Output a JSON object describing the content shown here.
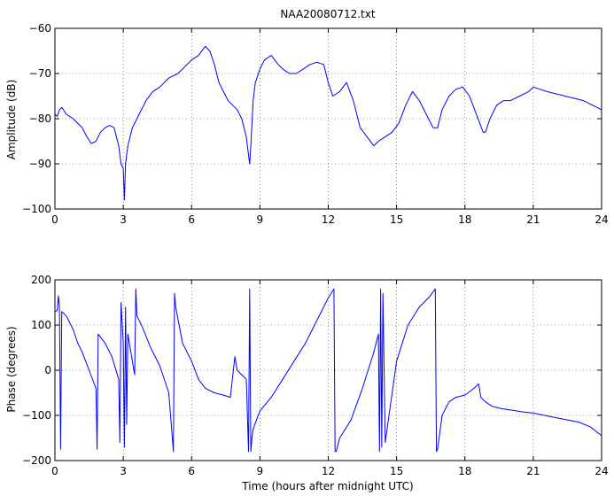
{
  "chart_data": [
    {
      "type": "line",
      "title": "NAA20080712.txt",
      "xlabel": "",
      "ylabel": "Amplitude (dB)",
      "xlim": [
        0,
        24
      ],
      "ylim": [
        -100,
        -60
      ],
      "xticks": [
        0,
        3,
        6,
        9,
        12,
        15,
        18,
        21,
        24
      ],
      "yticks": [
        -100,
        -90,
        -80,
        -70,
        -60
      ],
      "xtick_labels": [
        "0",
        "3",
        "6",
        "9",
        "12",
        "15",
        "18",
        "21",
        "24"
      ],
      "ytick_labels": [
        "−100",
        "−90",
        "−80",
        "−70",
        "−60"
      ],
      "grid": true,
      "color": "#0000ff",
      "series": [
        {
          "x": [
            0,
            0.1,
            0.2,
            0.3,
            0.5,
            0.8,
            1.0,
            1.2,
            1.4,
            1.6,
            1.8,
            2.0,
            2.2,
            2.4,
            2.6,
            2.8,
            2.9,
            3.0,
            3.05,
            3.1,
            3.2,
            3.4,
            3.6,
            3.8,
            4.0,
            4.3,
            4.6,
            5.0,
            5.4,
            5.8,
            6.0,
            6.3,
            6.6,
            6.8,
            7.0,
            7.2,
            7.4,
            7.6,
            7.8,
            8.0,
            8.2,
            8.4,
            8.5,
            8.55,
            8.6,
            8.7,
            8.8,
            9.0,
            9.2,
            9.5,
            9.8,
            10.0,
            10.3,
            10.6,
            10.9,
            11.2,
            11.5,
            11.8,
            12.0,
            12.2,
            12.5,
            12.8,
            13.1,
            13.4,
            13.7,
            14.0,
            14.2,
            14.5,
            14.8,
            15.1,
            15.4,
            15.7,
            16.0,
            16.3,
            16.6,
            16.8,
            17.0,
            17.3,
            17.6,
            17.9,
            18.2,
            18.5,
            18.8,
            18.9,
            19.1,
            19.4,
            19.7,
            20.0,
            20.4,
            20.8,
            21.0,
            21.3,
            21.6,
            22.0,
            22.4,
            22.8,
            23.2,
            23.6,
            24.0
          ],
          "y": [
            -79,
            -79.5,
            -78,
            -77.5,
            -79,
            -80,
            -81,
            -82,
            -84,
            -85.5,
            -85,
            -83,
            -82,
            -81.5,
            -82,
            -86,
            -90,
            -91,
            -98,
            -90,
            -86,
            -82,
            -80,
            -78,
            -76,
            -74,
            -73,
            -71,
            -70,
            -68,
            -67,
            -66,
            -64,
            -65,
            -68,
            -72,
            -74,
            -76,
            -77,
            -78,
            -80,
            -84,
            -88,
            -90,
            -86,
            -76,
            -72,
            -69,
            -67,
            -66,
            -68,
            -69,
            -70,
            -70,
            -69,
            -68,
            -67.5,
            -68,
            -72,
            -75,
            -74,
            -72,
            -76,
            -82,
            -84,
            -86,
            -85,
            -84,
            -83,
            -81,
            -77,
            -74,
            -76,
            -79,
            -82,
            -82,
            -78,
            -75,
            -73.5,
            -73,
            -75,
            -79,
            -83,
            -83,
            -80,
            -77,
            -76,
            -76,
            -75,
            -74,
            -73,
            -73.5,
            -74,
            -74.5,
            -75,
            -75.5,
            -76,
            -77,
            -78
          ]
        }
      ]
    },
    {
      "type": "line",
      "title": "",
      "xlabel": "Time (hours after midnight UTC)",
      "ylabel": "Phase (degrees)",
      "xlim": [
        0,
        24
      ],
      "ylim": [
        -200,
        200
      ],
      "xticks": [
        0,
        3,
        6,
        9,
        12,
        15,
        18,
        21,
        24
      ],
      "yticks": [
        -200,
        -100,
        0,
        100,
        200
      ],
      "xtick_labels": [
        "0",
        "3",
        "6",
        "9",
        "12",
        "15",
        "18",
        "21",
        "24"
      ],
      "ytick_labels": [
        "−200",
        "−100",
        "0",
        "100",
        "200"
      ],
      "grid": true,
      "color": "#0000ff",
      "series": [
        {
          "x": [
            0,
            0.1,
            0.15,
            0.2,
            0.25,
            0.3,
            0.5,
            0.8,
            1.0,
            1.2,
            1.5,
            1.8,
            1.85,
            1.9,
            2.2,
            2.5,
            2.8,
            2.85,
            2.9,
            3.0,
            3.05,
            3.1,
            3.15,
            3.2,
            3.4,
            3.5,
            3.55,
            3.6,
            3.8,
            4.2,
            4.6,
            5.0,
            5.2,
            5.25,
            5.3,
            5.6,
            6.0,
            6.3,
            6.6,
            7.0,
            7.4,
            7.7,
            7.9,
            8.0,
            8.2,
            8.4,
            8.5,
            8.55,
            8.6,
            8.65,
            8.7,
            9.0,
            9.5,
            10.0,
            10.5,
            11.0,
            11.5,
            12.0,
            12.25,
            12.3,
            12.35,
            12.5,
            13.0,
            13.5,
            14.0,
            14.2,
            14.25,
            14.3,
            14.35,
            14.4,
            14.5,
            15.0,
            15.5,
            16.0,
            16.4,
            16.7,
            16.75,
            16.8,
            17.0,
            17.3,
            17.6,
            18.0,
            18.4,
            18.6,
            18.7,
            18.9,
            19.2,
            19.6,
            20.0,
            20.5,
            21.0,
            21.5,
            22.0,
            22.5,
            23.0,
            23.5,
            24.0
          ],
          "y": [
            130,
            132,
            165,
            140,
            -175,
            130,
            120,
            90,
            60,
            40,
            0,
            -40,
            -175,
            80,
            60,
            30,
            -20,
            -160,
            150,
            60,
            -170,
            140,
            -120,
            80,
            20,
            -10,
            180,
            120,
            100,
            50,
            10,
            -50,
            -180,
            170,
            140,
            60,
            20,
            -20,
            -40,
            -50,
            -55,
            -60,
            30,
            0,
            -10,
            -20,
            -180,
            180,
            -180,
            -150,
            -130,
            -90,
            -60,
            -20,
            20,
            60,
            110,
            160,
            180,
            -180,
            -180,
            -150,
            -110,
            -40,
            40,
            80,
            -180,
            180,
            -170,
            170,
            -160,
            20,
            100,
            140,
            160,
            180,
            -180,
            -175,
            -100,
            -70,
            -60,
            -55,
            -40,
            -30,
            -60,
            -70,
            -80,
            -85,
            -88,
            -92,
            -95,
            -100,
            -105,
            -110,
            -115,
            -125,
            -145
          ]
        }
      ]
    }
  ]
}
